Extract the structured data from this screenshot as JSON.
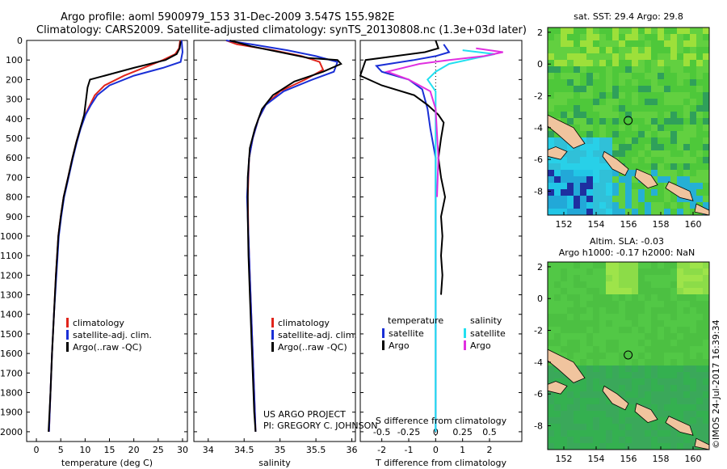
{
  "header": {
    "title_line1": "Argo profile: aoml 5900979_153 31-Dec-2009 3.547S 155.982E",
    "title_line2": "Climatology: CARS2009. Satellite-adjusted climatology: synTS_20130808.nc (1.3e+03d later)"
  },
  "credits": {
    "project": "US ARGO PROJECT",
    "pi": "PI: GREGORY C. JOHNSON",
    "stamp": "©IMOS 24-Jul-2017 16:39:34"
  },
  "colors": {
    "climatology": "#e0241b",
    "satellite": "#1a2fd6",
    "argo": "#000000",
    "sal_satellite": "#22e0f0",
    "sal_argo": "#e030e0",
    "map_green": "#3fc63a",
    "land": "#f0c49e"
  },
  "chart_data": [
    {
      "type": "line",
      "id": "temperature",
      "xlabel": "temperature (deg C)",
      "ylabel": "",
      "xlim": [
        -2,
        31
      ],
      "ylim": [
        2050,
        0
      ],
      "xticks": [
        0,
        5,
        10,
        15,
        20,
        25,
        30
      ],
      "yticks": [
        0,
        100,
        200,
        300,
        400,
        500,
        600,
        700,
        800,
        900,
        1000,
        1100,
        1200,
        1300,
        1400,
        1500,
        1600,
        1700,
        1800,
        1900,
        2000
      ],
      "legend": [
        "climatology",
        "satellite-adj. clim.",
        "Argo(..raw -QC)"
      ],
      "series": [
        {
          "name": "climatology",
          "color_key": "climatology",
          "points": [
            [
              29.5,
              0
            ],
            [
              29.3,
              40
            ],
            [
              28.5,
              70
            ],
            [
              26.0,
              100
            ],
            [
              22.0,
              140
            ],
            [
              18.0,
              180
            ],
            [
              14.0,
              230
            ],
            [
              12.0,
              280
            ],
            [
              11.0,
              330
            ],
            [
              10.0,
              380
            ],
            [
              9.0,
              450
            ],
            [
              8.2,
              520
            ],
            [
              7.4,
              600
            ],
            [
              6.5,
              700
            ],
            [
              5.6,
              800
            ],
            [
              5.0,
              900
            ],
            [
              4.5,
              1000
            ],
            [
              4.0,
              1200
            ],
            [
              3.6,
              1400
            ],
            [
              3.2,
              1600
            ],
            [
              2.9,
              1800
            ],
            [
              2.6,
              2000
            ]
          ]
        },
        {
          "name": "satellite-adj. clim.",
          "color_key": "satellite",
          "points": [
            [
              29.8,
              0
            ],
            [
              30.0,
              60
            ],
            [
              29.6,
              110
            ],
            [
              26.0,
              140
            ],
            [
              20.0,
              180
            ],
            [
              15.0,
              230
            ],
            [
              12.5,
              280
            ],
            [
              11.2,
              330
            ],
            [
              10.1,
              380
            ],
            [
              9.1,
              450
            ],
            [
              8.3,
              520
            ],
            [
              7.5,
              600
            ],
            [
              6.6,
              700
            ],
            [
              5.7,
              800
            ],
            [
              5.1,
              900
            ],
            [
              4.6,
              1000
            ],
            [
              4.1,
              1200
            ],
            [
              3.6,
              1400
            ],
            [
              3.2,
              1600
            ],
            [
              2.9,
              1800
            ],
            [
              2.6,
              2000
            ]
          ]
        },
        {
          "name": "Argo(..raw -QC)",
          "color_key": "argo",
          "points": [
            [
              29.6,
              5
            ],
            [
              29.4,
              40
            ],
            [
              28.8,
              70
            ],
            [
              26.5,
              100
            ],
            [
              20.0,
              140
            ],
            [
              14.0,
              180
            ],
            [
              11.0,
              200
            ],
            [
              10.5,
              240
            ],
            [
              10.2,
              300
            ],
            [
              9.8,
              380
            ],
            [
              9.0,
              450
            ],
            [
              8.2,
              520
            ],
            [
              7.4,
              600
            ],
            [
              6.5,
              700
            ],
            [
              5.6,
              800
            ],
            [
              5.0,
              900
            ],
            [
              4.5,
              1000
            ],
            [
              4.0,
              1200
            ],
            [
              3.6,
              1400
            ],
            [
              3.2,
              1600
            ],
            [
              2.9,
              1800
            ],
            [
              2.5,
              2000
            ]
          ]
        }
      ]
    },
    {
      "type": "line",
      "id": "salinity",
      "xlabel": "salinity",
      "ylabel": "",
      "xlim": [
        33.8,
        36.05
      ],
      "ylim": [
        2050,
        0
      ],
      "xticks": [
        34,
        34.5,
        35,
        35.5,
        36
      ],
      "legend": [
        "climatology",
        "satellite-adj. clim.",
        "Argo(..raw -QC)"
      ],
      "series": [
        {
          "name": "climatology",
          "color_key": "climatology",
          "points": [
            [
              34.25,
              0
            ],
            [
              34.4,
              20
            ],
            [
              34.9,
              50
            ],
            [
              35.3,
              80
            ],
            [
              35.55,
              110
            ],
            [
              35.6,
              150
            ],
            [
              35.35,
              200
            ],
            [
              35.0,
              260
            ],
            [
              34.8,
              330
            ],
            [
              34.7,
              400
            ],
            [
              34.62,
              500
            ],
            [
              34.57,
              600
            ],
            [
              34.55,
              800
            ],
            [
              34.56,
              1000
            ],
            [
              34.58,
              1200
            ],
            [
              34.6,
              1400
            ],
            [
              34.62,
              1600
            ],
            [
              34.64,
              1800
            ],
            [
              34.66,
              2000
            ]
          ]
        },
        {
          "name": "satellite-adj. clim.",
          "color_key": "satellite",
          "points": [
            [
              34.25,
              0
            ],
            [
              34.6,
              20
            ],
            [
              35.1,
              50
            ],
            [
              35.5,
              80
            ],
            [
              35.8,
              110
            ],
            [
              35.75,
              160
            ],
            [
              35.45,
              200
            ],
            [
              35.05,
              260
            ],
            [
              34.8,
              330
            ],
            [
              34.7,
              400
            ],
            [
              34.62,
              500
            ],
            [
              34.57,
              600
            ],
            [
              34.54,
              800
            ],
            [
              34.56,
              1000
            ],
            [
              34.58,
              1200
            ],
            [
              34.6,
              1400
            ],
            [
              34.62,
              1600
            ],
            [
              34.64,
              1800
            ],
            [
              34.66,
              2000
            ]
          ]
        },
        {
          "name": "Argo(..raw -QC)",
          "color_key": "argo",
          "points": [
            [
              34.3,
              0
            ],
            [
              34.6,
              30
            ],
            [
              35.0,
              60
            ],
            [
              35.4,
              90
            ],
            [
              35.8,
              100
            ],
            [
              35.85,
              120
            ],
            [
              35.6,
              160
            ],
            [
              35.2,
              210
            ],
            [
              34.9,
              280
            ],
            [
              34.75,
              350
            ],
            [
              34.65,
              450
            ],
            [
              34.58,
              550
            ],
            [
              34.55,
              700
            ],
            [
              34.55,
              900
            ],
            [
              34.56,
              1100
            ],
            [
              34.58,
              1300
            ],
            [
              34.6,
              1500
            ],
            [
              34.62,
              1700
            ],
            [
              34.64,
              1900
            ],
            [
              34.66,
              2000
            ]
          ]
        }
      ]
    },
    {
      "type": "line",
      "id": "difference",
      "xlabel": "T difference from climatology",
      "xlabel_top": "S difference from climatology",
      "xlim": [
        -2.8,
        3.2
      ],
      "ylim": [
        2050,
        0
      ],
      "xticks": [
        -2,
        -1,
        0,
        1,
        2
      ],
      "xticks_s": [
        -0.5,
        -0.25,
        0,
        0.25,
        0.5
      ],
      "xtick_s_labels": [
        "-0.5",
        "-0.25",
        "0",
        "0.25",
        "0.5"
      ],
      "legend_temperature_header": "temperature",
      "legend_salinity_header": "salinity",
      "legend_temperature": [
        "satellite",
        "Argo"
      ],
      "legend_salinity": [
        "satellite",
        "Argo"
      ],
      "series": [
        {
          "name": "satellite",
          "group": "temperature",
          "color_key": "satellite",
          "points": [
            [
              0.3,
              20
            ],
            [
              0.5,
              60
            ],
            [
              0.0,
              80
            ],
            [
              -0.8,
              100
            ],
            [
              -2.2,
              130
            ],
            [
              -2.0,
              160
            ],
            [
              -1.0,
              200
            ],
            [
              -0.5,
              250
            ],
            [
              -0.3,
              350
            ],
            [
              -0.2,
              450
            ],
            [
              0.0,
              600
            ],
            [
              0.0,
              1000
            ],
            [
              0.0,
              1400
            ],
            [
              0.0,
              2000
            ]
          ]
        },
        {
          "name": "Argo",
          "group": "temperature",
          "color_key": "argo",
          "points": [
            [
              0.0,
              0
            ],
            [
              0.1,
              40
            ],
            [
              -0.4,
              60
            ],
            [
              -2.6,
              100
            ],
            [
              -2.8,
              180
            ],
            [
              -2.0,
              230
            ],
            [
              -0.8,
              280
            ],
            [
              -0.3,
              330
            ],
            [
              0.1,
              380
            ],
            [
              0.3,
              420
            ],
            [
              0.2,
              500
            ],
            [
              0.1,
              600
            ],
            [
              0.2,
              700
            ],
            [
              0.35,
              800
            ],
            [
              0.2,
              900
            ],
            [
              0.25,
              1000
            ],
            [
              0.2,
              1100
            ],
            [
              0.25,
              1200
            ],
            [
              0.2,
              1300
            ]
          ]
        },
        {
          "name": "satellite",
          "group": "salinity",
          "color_key": "sal_satellite",
          "points": [
            [
              1.0,
              50
            ],
            [
              2.2,
              70
            ],
            [
              1.5,
              90
            ],
            [
              0.5,
              120
            ],
            [
              0.0,
              160
            ],
            [
              -0.3,
              200
            ],
            [
              0.0,
              260
            ],
            [
              0.0,
              400
            ],
            [
              0.0,
              800
            ],
            [
              0.0,
              1200
            ],
            [
              0.0,
              1600
            ],
            [
              0.0,
              2000
            ]
          ]
        },
        {
          "name": "Argo",
          "group": "salinity",
          "color_key": "sal_argo",
          "points": [
            [
              1.5,
              40
            ],
            [
              2.5,
              60
            ],
            [
              1.8,
              80
            ],
            [
              0.5,
              100
            ],
            [
              -0.6,
              120
            ],
            [
              -1.8,
              160
            ],
            [
              -1.0,
              200
            ],
            [
              -0.2,
              260
            ],
            [
              0.0,
              350
            ],
            [
              0.1,
              600
            ],
            [
              0.05,
              800
            ]
          ]
        }
      ]
    },
    {
      "type": "heatmap",
      "id": "sst_map",
      "title": "sat. SST: 29.4 Argo: 29.8",
      "xlim": [
        151,
        161
      ],
      "ylim": [
        -9.5,
        2.3
      ],
      "xticks": [
        152,
        154,
        156,
        158,
        160
      ],
      "yticks": [
        2,
        0,
        -2,
        -4,
        -6,
        -8
      ],
      "marker": [
        155.982,
        -3.547
      ]
    },
    {
      "type": "heatmap",
      "id": "sla_map",
      "title": "Altim. SLA: -0.03",
      "title_line2": "Argo h1000: -0.17 h2000: NaN",
      "xlim": [
        151,
        161
      ],
      "ylim": [
        -9.5,
        2.3
      ],
      "xticks": [
        152,
        154,
        156,
        158,
        160
      ],
      "yticks": [
        2,
        0,
        -2,
        -4,
        -6,
        -8
      ],
      "marker": [
        155.982,
        -3.547
      ]
    }
  ]
}
